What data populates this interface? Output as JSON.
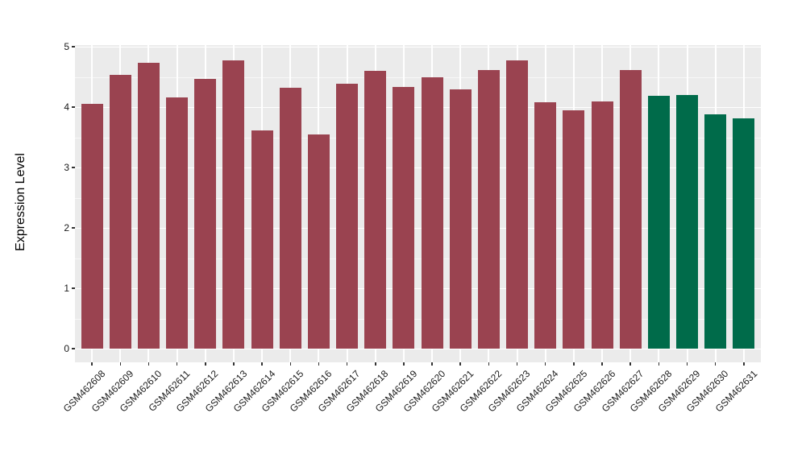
{
  "chart_data": {
    "type": "bar",
    "title": "",
    "xlabel": "",
    "ylabel": "Expression Level",
    "categories": [
      "GSM462608",
      "GSM462609",
      "GSM462610",
      "GSM462611",
      "GSM462612",
      "GSM462613",
      "GSM462614",
      "GSM462615",
      "GSM462616",
      "GSM462617",
      "GSM462618",
      "GSM462619",
      "GSM462620",
      "GSM462621",
      "GSM462622",
      "GSM462623",
      "GSM462624",
      "GSM462625",
      "GSM462626",
      "GSM462627",
      "GSM462628",
      "GSM462629",
      "GSM462630",
      "GSM462631"
    ],
    "values": [
      4.06,
      4.53,
      4.73,
      4.16,
      4.47,
      4.77,
      3.61,
      4.32,
      3.55,
      4.39,
      4.6,
      4.33,
      4.49,
      4.3,
      4.62,
      4.78,
      4.08,
      3.95,
      4.1,
      4.61,
      4.19,
      4.2,
      3.88,
      3.81
    ],
    "bar_colors": [
      "#9A4350",
      "#9A4350",
      "#9A4350",
      "#9A4350",
      "#9A4350",
      "#9A4350",
      "#9A4350",
      "#9A4350",
      "#9A4350",
      "#9A4350",
      "#9A4350",
      "#9A4350",
      "#9A4350",
      "#9A4350",
      "#9A4350",
      "#9A4350",
      "#9A4350",
      "#9A4350",
      "#9A4350",
      "#9A4350",
      "#006B4A",
      "#006B4A",
      "#006B4A",
      "#006B4A"
    ],
    "ylim": [
      0,
      5
    ],
    "yticks": [
      0,
      1,
      2,
      3,
      4,
      5
    ],
    "yticks_minor": [
      0.5,
      1.5,
      2.5,
      3.5,
      4.5
    ],
    "grid": "major+minor on",
    "legend": "none",
    "styles": {
      "panel_background": "#EBEBEB",
      "grid_color": "#FFFFFF",
      "tick_mark_color": "#333333",
      "axis_text_color": "#1A1A1A",
      "axis_title_color": "#000000",
      "page_background": "#FFFFFF",
      "bar_color_main": "#9A4350",
      "bar_color_accent": "#006B4A"
    }
  }
}
